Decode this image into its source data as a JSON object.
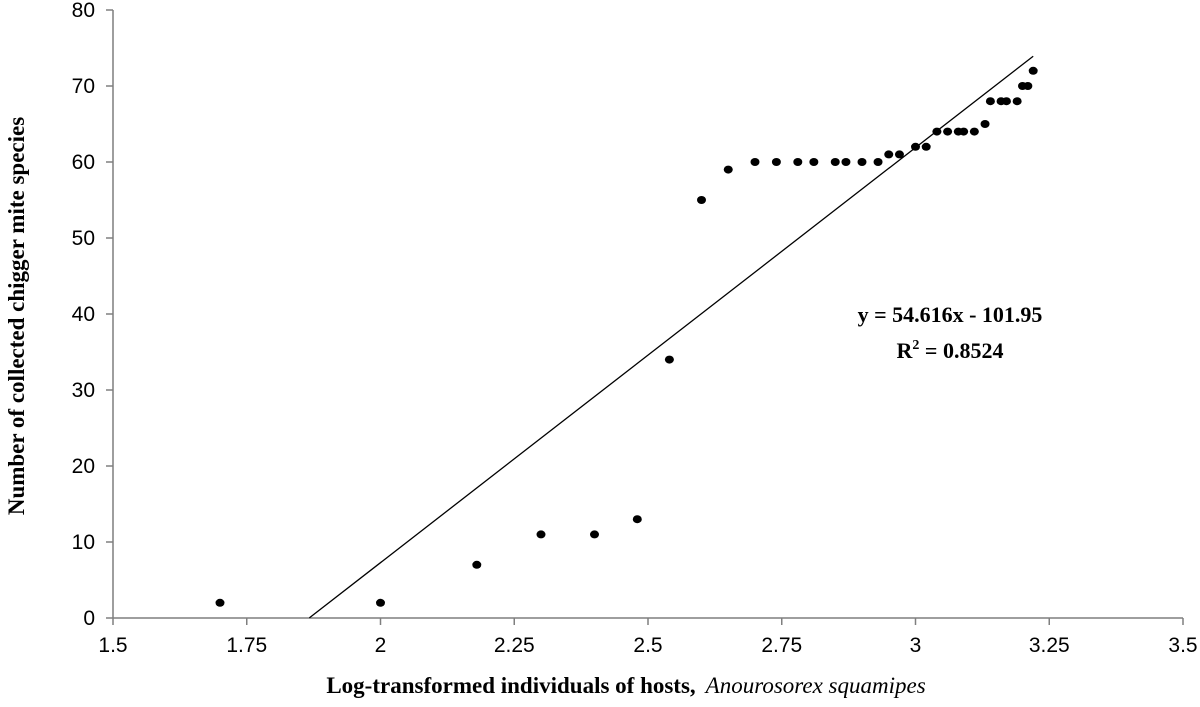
{
  "chart_data": {
    "type": "scatter",
    "xlabel_main": "Log-transformed individuals of hosts,",
    "xlabel_species": "Anourosorex squamipes",
    "ylabel": "Number of collected chigger mite species",
    "xlim": [
      1.5,
      3.5
    ],
    "ylim": [
      0,
      80
    ],
    "x_ticks": [
      "1.5",
      "1.75",
      "2",
      "2.25",
      "2.5",
      "2.75",
      "3",
      "3.25",
      "3.5"
    ],
    "y_ticks": [
      "0",
      "10",
      "20",
      "30",
      "40",
      "50",
      "60",
      "70",
      "80"
    ],
    "grid": false,
    "points": [
      {
        "x": 1.7,
        "y": 2
      },
      {
        "x": 2.0,
        "y": 2
      },
      {
        "x": 2.18,
        "y": 7
      },
      {
        "x": 2.3,
        "y": 11
      },
      {
        "x": 2.4,
        "y": 11
      },
      {
        "x": 2.48,
        "y": 13
      },
      {
        "x": 2.54,
        "y": 34
      },
      {
        "x": 2.6,
        "y": 55
      },
      {
        "x": 2.65,
        "y": 59
      },
      {
        "x": 2.7,
        "y": 60
      },
      {
        "x": 2.74,
        "y": 60
      },
      {
        "x": 2.78,
        "y": 60
      },
      {
        "x": 2.81,
        "y": 60
      },
      {
        "x": 2.85,
        "y": 60
      },
      {
        "x": 2.87,
        "y": 60
      },
      {
        "x": 2.9,
        "y": 60
      },
      {
        "x": 2.93,
        "y": 60
      },
      {
        "x": 2.95,
        "y": 61
      },
      {
        "x": 2.97,
        "y": 61
      },
      {
        "x": 3.0,
        "y": 62
      },
      {
        "x": 3.02,
        "y": 62
      },
      {
        "x": 3.04,
        "y": 64
      },
      {
        "x": 3.06,
        "y": 64
      },
      {
        "x": 3.08,
        "y": 64
      },
      {
        "x": 3.09,
        "y": 64
      },
      {
        "x": 3.11,
        "y": 64
      },
      {
        "x": 3.13,
        "y": 65
      },
      {
        "x": 3.14,
        "y": 68
      },
      {
        "x": 3.16,
        "y": 68
      },
      {
        "x": 3.17,
        "y": 68
      },
      {
        "x": 3.19,
        "y": 68
      },
      {
        "x": 3.2,
        "y": 70
      },
      {
        "x": 3.21,
        "y": 70
      },
      {
        "x": 3.22,
        "y": 72
      }
    ],
    "trendline": {
      "slope": 54.616,
      "intercept": -101.95,
      "x_start": 1.867,
      "x_end": 3.22
    },
    "equation_text": "y = 54.616x - 101.95",
    "r2_label": "R",
    "r2_exponent": "2",
    "r2_value_text": " = 0.8524",
    "colors": {
      "marker": "#000000",
      "line": "#000000",
      "axis": "#7f7f7f"
    }
  }
}
